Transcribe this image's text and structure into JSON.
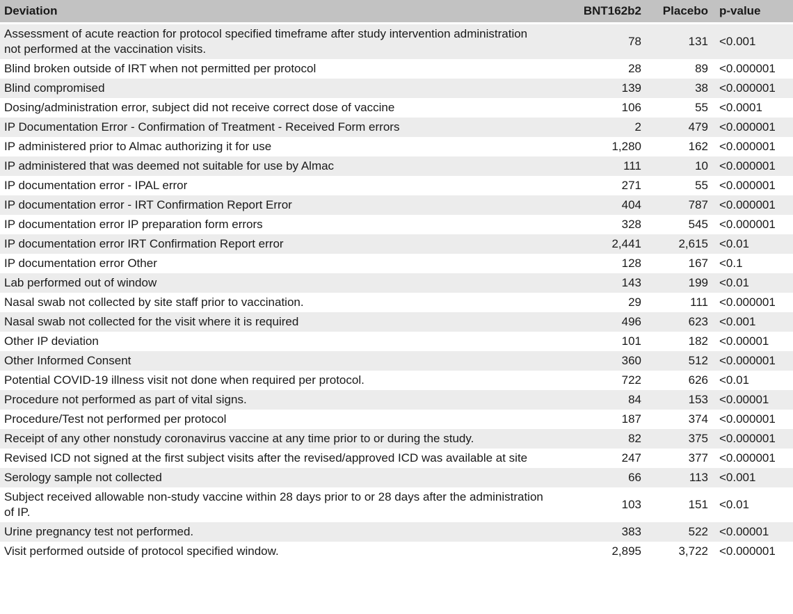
{
  "colors": {
    "header_bg": "#c2c2c2",
    "stripe_bg": "#ececec",
    "row_bg": "#ffffff",
    "text": "#1a1a1a",
    "separator": "#ffffff"
  },
  "table": {
    "columns": [
      {
        "key": "deviation",
        "label": "Deviation",
        "align": "left"
      },
      {
        "key": "bnt162b2",
        "label": "BNT162b2",
        "align": "right"
      },
      {
        "key": "placebo",
        "label": "Placebo",
        "align": "right"
      },
      {
        "key": "p_value",
        "label": "p-value",
        "align": "left"
      }
    ],
    "rows": [
      {
        "deviation": "Assessment of acute reaction for protocol specified timeframe after study intervention administration not performed at the vaccination visits.",
        "bnt162b2": "78",
        "placebo": "131",
        "p_value": "<0.001"
      },
      {
        "deviation": "Blind broken outside of IRT when not permitted per protocol",
        "bnt162b2": "28",
        "placebo": "89",
        "p_value": "<0.000001"
      },
      {
        "deviation": "Blind compromised",
        "bnt162b2": "139",
        "placebo": "38",
        "p_value": "<0.000001"
      },
      {
        "deviation": "Dosing/administration error, subject did not receive correct dose of vaccine",
        "bnt162b2": "106",
        "placebo": "55",
        "p_value": "<0.0001"
      },
      {
        "deviation": "IP Documentation Error - Confirmation of Treatment - Received Form errors",
        "bnt162b2": "2",
        "placebo": "479",
        "p_value": "<0.000001"
      },
      {
        "deviation": "IP administered prior to Almac authorizing it for use",
        "bnt162b2": "1,280",
        "placebo": "162",
        "p_value": "<0.000001"
      },
      {
        "deviation": "IP administered that was deemed not suitable for use by Almac",
        "bnt162b2": "111",
        "placebo": "10",
        "p_value": "<0.000001"
      },
      {
        "deviation": "IP documentation error - IPAL error",
        "bnt162b2": "271",
        "placebo": "55",
        "p_value": "<0.000001"
      },
      {
        "deviation": "IP documentation error - IRT Confirmation Report Error",
        "bnt162b2": "404",
        "placebo": "787",
        "p_value": "<0.000001"
      },
      {
        "deviation": "IP documentation error IP preparation form errors",
        "bnt162b2": "328",
        "placebo": "545",
        "p_value": "<0.000001"
      },
      {
        "deviation": "IP documentation error IRT Confirmation Report error",
        "bnt162b2": "2,441",
        "placebo": "2,615",
        "p_value": "<0.01"
      },
      {
        "deviation": "IP documentation error Other",
        "bnt162b2": "128",
        "placebo": "167",
        "p_value": "<0.1"
      },
      {
        "deviation": "Lab performed out of window",
        "bnt162b2": "143",
        "placebo": "199",
        "p_value": "<0.01"
      },
      {
        "deviation": "Nasal swab not collected by site staff prior to vaccination.",
        "bnt162b2": "29",
        "placebo": "111",
        "p_value": "<0.000001"
      },
      {
        "deviation": "Nasal swab not collected for the visit where it is required",
        "bnt162b2": "496",
        "placebo": "623",
        "p_value": "<0.001"
      },
      {
        "deviation": "Other IP deviation",
        "bnt162b2": "101",
        "placebo": "182",
        "p_value": "<0.00001"
      },
      {
        "deviation": "Other Informed Consent",
        "bnt162b2": "360",
        "placebo": "512",
        "p_value": "<0.000001"
      },
      {
        "deviation": "Potential COVID-19 illness visit not done when required per protocol.",
        "bnt162b2": "722",
        "placebo": "626",
        "p_value": "<0.01"
      },
      {
        "deviation": "Procedure not performed as part of vital signs.",
        "bnt162b2": "84",
        "placebo": "153",
        "p_value": "<0.00001"
      },
      {
        "deviation": "Procedure/Test not performed per protocol",
        "bnt162b2": "187",
        "placebo": "374",
        "p_value": "<0.000001"
      },
      {
        "deviation": "Receipt of any other nonstudy coronavirus vaccine at any time prior to or during the study.",
        "bnt162b2": "82",
        "placebo": "375",
        "p_value": "<0.000001"
      },
      {
        "deviation": "Revised ICD not signed at the first subject visits after the revised/approved ICD was available at site",
        "bnt162b2": "247",
        "placebo": "377",
        "p_value": "<0.000001"
      },
      {
        "deviation": "Serology sample not collected",
        "bnt162b2": "66",
        "placebo": "113",
        "p_value": "<0.001"
      },
      {
        "deviation": "Subject received allowable non-study vaccine within 28 days prior to or 28 days after the administration of IP.",
        "bnt162b2": "103",
        "placebo": "151",
        "p_value": "<0.01"
      },
      {
        "deviation": "Urine pregnancy test not performed.",
        "bnt162b2": "383",
        "placebo": "522",
        "p_value": "<0.00001"
      },
      {
        "deviation": "Visit performed outside of protocol specified window.",
        "bnt162b2": "2,895",
        "placebo": "3,722",
        "p_value": "<0.000001"
      }
    ]
  }
}
